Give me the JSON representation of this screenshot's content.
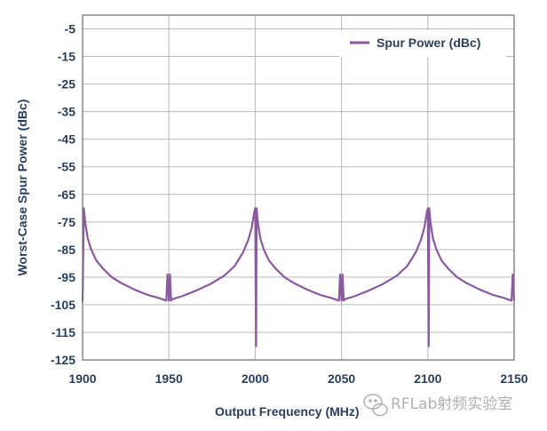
{
  "chart_data": {
    "type": "line",
    "xlabel": "Output Frequency (MHz)",
    "ylabel": "Worst-Case Spur Power (dBc)",
    "xlim": [
      1900,
      2150
    ],
    "ylim": [
      -125,
      0
    ],
    "xticks": [
      1900,
      1950,
      2000,
      2050,
      2100,
      2150
    ],
    "yticks": [
      -5,
      -15,
      -25,
      -35,
      -45,
      -55,
      -65,
      -75,
      -85,
      -95,
      -105,
      -115,
      -125
    ],
    "grid": true,
    "legend_position": "top-right",
    "series": [
      {
        "name": "Spur Power (dBc)",
        "color": "#8a5a9e",
        "x": [
          1900.0,
          1900.7,
          1901.5,
          1903,
          1905,
          1908,
          1912,
          1917,
          1922,
          1930,
          1938,
          1944,
          1948.5,
          1949.2,
          1950.0,
          1950.6,
          1951.3,
          1952.0,
          1958,
          1966,
          1974,
          1982,
          1988,
          1993,
          1996,
          1998,
          1999.3,
          2000.0,
          2000.5,
          2000.8,
          2001.5,
          2003,
          2005,
          2008,
          2012,
          2017,
          2022,
          2030,
          2038,
          2044,
          2048.5,
          2049.2,
          2050.0,
          2050.6,
          2051.3,
          2052.0,
          2058,
          2066,
          2074,
          2082,
          2088,
          2093,
          2096,
          2098,
          2099.3,
          2100.0,
          2100.5,
          2100.8,
          2101.5,
          2103,
          2105,
          2108,
          2112,
          2117,
          2122,
          2130,
          2138,
          2144,
          2148.5,
          2149.2,
          2150.0
        ],
        "y": [
          -104,
          -70,
          -75,
          -81,
          -85,
          -89,
          -92,
          -95,
          -97,
          -99.5,
          -101.5,
          -102.5,
          -103.5,
          -94,
          -103.5,
          -94,
          -103.5,
          -103,
          -101.8,
          -99.8,
          -97.5,
          -94.5,
          -91,
          -86,
          -81.5,
          -77,
          -72,
          -70,
          -120,
          -70,
          -75,
          -81,
          -85,
          -89,
          -92,
          -95,
          -97,
          -99.5,
          -101.5,
          -102.5,
          -103.5,
          -94,
          -103.5,
          -94,
          -103.5,
          -103,
          -101.8,
          -99.8,
          -97.5,
          -94.5,
          -91,
          -86,
          -81.5,
          -77,
          -72,
          -70,
          -120,
          -70,
          -75,
          -81,
          -85,
          -89,
          -92,
          -95,
          -97,
          -99.5,
          -101.5,
          -102.5,
          -103.5,
          -94,
          -103.5
        ]
      }
    ]
  },
  "legend": {
    "label": "Spur Power (dBc)",
    "color": "#8a5a9e"
  },
  "watermark": {
    "text": "RFLab射频实验室"
  }
}
